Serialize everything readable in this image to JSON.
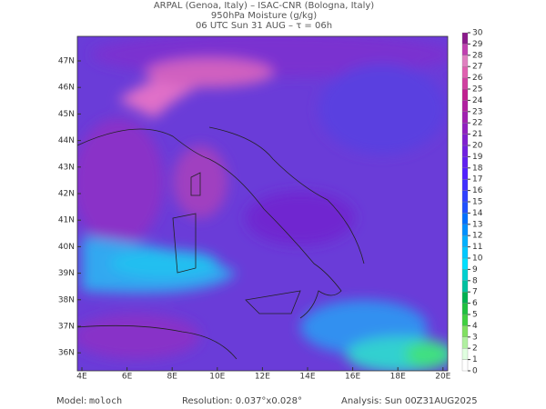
{
  "header": {
    "line1": "ARPAL (Genoa, Italy)  –  ISAC-CNR (Bologna, Italy)",
    "line2": "950hPa Moisture (g/kg)",
    "line3": "06 UTC Sun 31 AUG  –  τ = 06h"
  },
  "map": {
    "lat_labels": [
      "47N",
      "46N",
      "45N",
      "44N",
      "43N",
      "42N",
      "41N",
      "40N",
      "39N",
      "38N",
      "37N",
      "36N"
    ],
    "lon_labels": [
      "4E",
      "6E",
      "8E",
      "10E",
      "12E",
      "14E",
      "16E",
      "18E",
      "20E"
    ]
  },
  "colorbar": {
    "levels": [
      0,
      1,
      2,
      3,
      4,
      5,
      6,
      7,
      8,
      9,
      10,
      11,
      12,
      13,
      14,
      15,
      16,
      17,
      18,
      19,
      20,
      21,
      22,
      23,
      24,
      25,
      26,
      27,
      28,
      29,
      30
    ],
    "colors": [
      "#ffffff",
      "#e0ffe0",
      "#b0f0a0",
      "#80e060",
      "#40d040",
      "#20c040",
      "#00b050",
      "#00c0a0",
      "#00d0d0",
      "#00e0ff",
      "#00c8ff",
      "#00b0ff",
      "#0090ff",
      "#0070ff",
      "#2050ff",
      "#3040ff",
      "#4030ff",
      "#5020ff",
      "#6020f0",
      "#7020e0",
      "#8020d0",
      "#9020c0",
      "#a020b0",
      "#b020a0",
      "#c02090",
      "#d040a0",
      "#e060b0",
      "#e080c0",
      "#c040b0",
      "#8a1a8a"
    ]
  },
  "footer": {
    "model_label": "Model:",
    "model": "moloch",
    "resolution": "Resolution: 0.037°x0.028°",
    "analysis": "Analysis: Sun 00Z31AUG2025"
  }
}
